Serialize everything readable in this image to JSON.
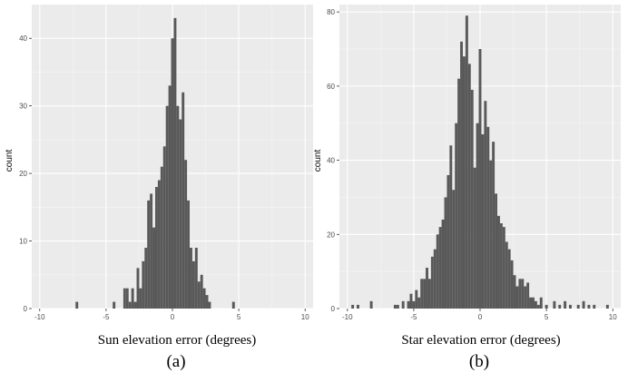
{
  "chart_data": [
    {
      "type": "bar",
      "subtype": "histogram",
      "caption": "(a)",
      "xlabel": "Sun elevation error (degrees)",
      "ylabel": "count",
      "xlim": [
        -10.6,
        10.6
      ],
      "ylim": [
        0,
        45
      ],
      "x_ticks": [
        -10,
        -5,
        0,
        5,
        10
      ],
      "y_ticks": [
        0,
        10,
        20,
        30,
        40
      ],
      "bin_width": 0.2,
      "bar_color": "#595959",
      "panel_background": "#ebebeb",
      "grid": true,
      "bins": [
        {
          "x": -7.2,
          "count": 1
        },
        {
          "x": -4.4,
          "count": 1
        },
        {
          "x": -3.6,
          "count": 3
        },
        {
          "x": -3.4,
          "count": 3
        },
        {
          "x": -3.2,
          "count": 1
        },
        {
          "x": -3.0,
          "count": 3
        },
        {
          "x": -2.8,
          "count": 1
        },
        {
          "x": -2.6,
          "count": 6
        },
        {
          "x": -2.4,
          "count": 3
        },
        {
          "x": -2.2,
          "count": 7
        },
        {
          "x": -2.0,
          "count": 9
        },
        {
          "x": -1.8,
          "count": 16
        },
        {
          "x": -1.6,
          "count": 17
        },
        {
          "x": -1.4,
          "count": 12
        },
        {
          "x": -1.2,
          "count": 18
        },
        {
          "x": -1.0,
          "count": 19
        },
        {
          "x": -0.8,
          "count": 21
        },
        {
          "x": -0.6,
          "count": 24
        },
        {
          "x": -0.4,
          "count": 30
        },
        {
          "x": -0.2,
          "count": 33
        },
        {
          "x": 0.0,
          "count": 40
        },
        {
          "x": 0.2,
          "count": 43
        },
        {
          "x": 0.4,
          "count": 30
        },
        {
          "x": 0.6,
          "count": 28
        },
        {
          "x": 0.8,
          "count": 32
        },
        {
          "x": 1.0,
          "count": 22
        },
        {
          "x": 1.2,
          "count": 16
        },
        {
          "x": 1.4,
          "count": 9
        },
        {
          "x": 1.6,
          "count": 7
        },
        {
          "x": 1.8,
          "count": 9
        },
        {
          "x": 2.0,
          "count": 4
        },
        {
          "x": 2.2,
          "count": 5
        },
        {
          "x": 2.4,
          "count": 3
        },
        {
          "x": 2.6,
          "count": 2
        },
        {
          "x": 2.8,
          "count": 1
        },
        {
          "x": 4.6,
          "count": 1
        }
      ]
    },
    {
      "type": "bar",
      "subtype": "histogram",
      "caption": "(b)",
      "xlabel": "Star elevation error (degrees)",
      "ylabel": "count",
      "xlim": [
        -10.6,
        10.6
      ],
      "ylim": [
        0,
        82
      ],
      "x_ticks": [
        -10,
        -5,
        0,
        5,
        10
      ],
      "y_ticks": [
        0,
        20,
        40,
        60,
        80
      ],
      "bin_width": 0.2,
      "bar_color": "#595959",
      "panel_background": "#ebebeb",
      "grid": true,
      "bins": [
        {
          "x": -9.6,
          "count": 1
        },
        {
          "x": -9.2,
          "count": 1
        },
        {
          "x": -8.2,
          "count": 2
        },
        {
          "x": -6.4,
          "count": 1
        },
        {
          "x": -6.2,
          "count": 1
        },
        {
          "x": -5.8,
          "count": 2
        },
        {
          "x": -5.4,
          "count": 2
        },
        {
          "x": -5.2,
          "count": 4
        },
        {
          "x": -5.0,
          "count": 2
        },
        {
          "x": -4.8,
          "count": 5
        },
        {
          "x": -4.6,
          "count": 3
        },
        {
          "x": -4.4,
          "count": 8
        },
        {
          "x": -4.2,
          "count": 8
        },
        {
          "x": -4.0,
          "count": 11
        },
        {
          "x": -3.8,
          "count": 8
        },
        {
          "x": -3.6,
          "count": 14
        },
        {
          "x": -3.4,
          "count": 16
        },
        {
          "x": -3.2,
          "count": 20
        },
        {
          "x": -3.0,
          "count": 22
        },
        {
          "x": -2.8,
          "count": 24
        },
        {
          "x": -2.6,
          "count": 30
        },
        {
          "x": -2.4,
          "count": 36
        },
        {
          "x": -2.2,
          "count": 44
        },
        {
          "x": -2.0,
          "count": 32
        },
        {
          "x": -1.8,
          "count": 50
        },
        {
          "x": -1.6,
          "count": 62
        },
        {
          "x": -1.4,
          "count": 72
        },
        {
          "x": -1.2,
          "count": 68
        },
        {
          "x": -1.0,
          "count": 79
        },
        {
          "x": -0.8,
          "count": 66
        },
        {
          "x": -0.6,
          "count": 59
        },
        {
          "x": -0.4,
          "count": 38
        },
        {
          "x": -0.2,
          "count": 50
        },
        {
          "x": 0.0,
          "count": 70
        },
        {
          "x": 0.2,
          "count": 47
        },
        {
          "x": 0.4,
          "count": 56
        },
        {
          "x": 0.6,
          "count": 49
        },
        {
          "x": 0.8,
          "count": 40
        },
        {
          "x": 1.0,
          "count": 45
        },
        {
          "x": 1.2,
          "count": 31
        },
        {
          "x": 1.4,
          "count": 25
        },
        {
          "x": 1.6,
          "count": 23
        },
        {
          "x": 1.8,
          "count": 22
        },
        {
          "x": 2.0,
          "count": 18
        },
        {
          "x": 2.2,
          "count": 16
        },
        {
          "x": 2.4,
          "count": 13
        },
        {
          "x": 2.6,
          "count": 9
        },
        {
          "x": 2.8,
          "count": 6
        },
        {
          "x": 3.0,
          "count": 8
        },
        {
          "x": 3.2,
          "count": 8
        },
        {
          "x": 3.4,
          "count": 6
        },
        {
          "x": 3.6,
          "count": 7
        },
        {
          "x": 3.8,
          "count": 3
        },
        {
          "x": 4.0,
          "count": 3
        },
        {
          "x": 4.2,
          "count": 2
        },
        {
          "x": 4.4,
          "count": 1
        },
        {
          "x": 4.6,
          "count": 3
        },
        {
          "x": 5.0,
          "count": 1
        },
        {
          "x": 5.6,
          "count": 2
        },
        {
          "x": 6.0,
          "count": 1
        },
        {
          "x": 6.4,
          "count": 2
        },
        {
          "x": 6.8,
          "count": 1
        },
        {
          "x": 7.4,
          "count": 1
        },
        {
          "x": 7.8,
          "count": 2
        },
        {
          "x": 8.2,
          "count": 1
        },
        {
          "x": 8.6,
          "count": 1
        },
        {
          "x": 9.6,
          "count": 1
        }
      ]
    }
  ]
}
